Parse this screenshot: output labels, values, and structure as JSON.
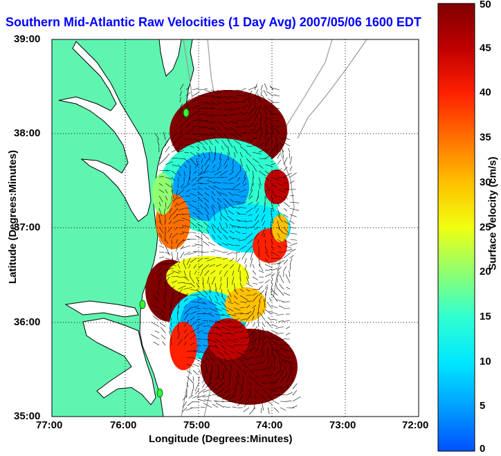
{
  "title": "Southern Mid-Atlantic Raw Velocities (1 Day Avg) 2007/05/06 1600 EDT",
  "xlabel": "Longitude (Degrees:Minutes)",
  "ylabel": "Latitude (Degrees:Minutes)",
  "colorbar": {
    "label": "Surface Velocity (cm/s)",
    "ticks": [
      "0",
      "5",
      "10",
      "15",
      "20",
      "25",
      "30",
      "35",
      "40",
      "45",
      "50"
    ],
    "min": 0,
    "max": 50,
    "colors": [
      "#0050ff",
      "#00a0ff",
      "#00e8ff",
      "#30ffd0",
      "#90ff70",
      "#f0ff10",
      "#ffc000",
      "#ff7000",
      "#ff2000",
      "#c00000",
      "#800000"
    ]
  },
  "x_ticks": [
    "77:00",
    "76:00",
    "75:00",
    "74:00",
    "73:00",
    "72:00"
  ],
  "y_ticks": [
    "39:00",
    "38:00",
    "37:00",
    "36:00",
    "35:00"
  ],
  "colors": {
    "land": "#5ff5b0",
    "water": "#ffffff",
    "coast": "#000000",
    "bathymetry": "#999999",
    "station": "#33ff33",
    "title": "#0000ff"
  }
}
